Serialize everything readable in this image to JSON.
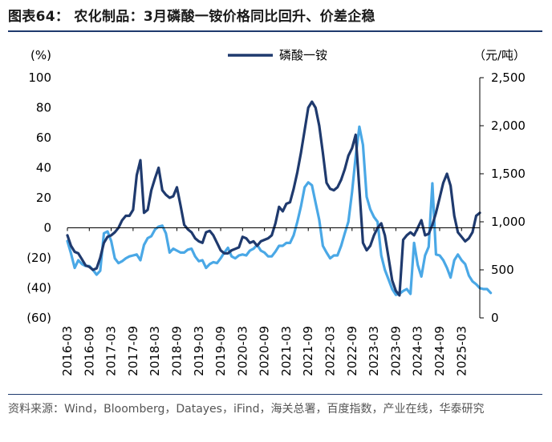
{
  "title": "图表64： 农化制品：3月磷酸一铵价格同比回升、价差企稳",
  "source": "资料来源：Wind，Bloomberg，Datayes，iFind，海关总署，百度指数，产业在线，华泰研究",
  "colors": {
    "series_dark": "#1f3a6e",
    "series_light": "#4aa8e6",
    "rule": "#1f3a6e"
  },
  "chart_data": {
    "type": "line",
    "title": "",
    "xlabel": "",
    "left_unit": "(%)",
    "right_unit": "（元/吨）",
    "ylim_left": [
      -60,
      100
    ],
    "ylim_right": [
      0,
      2500
    ],
    "left_ticks": [
      "100",
      "80",
      "60",
      "40",
      "20",
      "0",
      "(20)",
      "(40)",
      "(60)"
    ],
    "right_ticks": [
      "2,500",
      "2,000",
      "1,500",
      "1,000",
      "500",
      "0"
    ],
    "x_tick_labels": [
      "2016-03",
      "2016-09",
      "2017-03",
      "2017-09",
      "2018-03",
      "2018-09",
      "2019-03",
      "2019-09",
      "2020-03",
      "2020-09",
      "2021-03",
      "2021-09",
      "2022-03",
      "2022-09",
      "2023-03",
      "2023-09",
      "2024-03",
      "2024-09",
      "2025-03"
    ],
    "legend_position": "top-center",
    "series": [
      {
        "name": "磷酸一铵",
        "axis": "left",
        "color": "#1f3a6e",
        "values": [
          -5,
          -12,
          -16,
          -17,
          -21,
          -25,
          -26,
          -28,
          -27,
          -20,
          -10,
          -6,
          -5,
          -3,
          0,
          5,
          8,
          8,
          12,
          35,
          45,
          10,
          12,
          25,
          33,
          40,
          25,
          22,
          20,
          21,
          27,
          15,
          2,
          -1,
          -3,
          -7,
          -9,
          -10,
          -3,
          -2,
          -5,
          -10,
          -15,
          -17,
          -17,
          -15,
          -14,
          -13,
          -6,
          -7,
          -10,
          -9,
          -12,
          -9,
          -8,
          -7,
          -5,
          3,
          14,
          11,
          16,
          17,
          26,
          37,
          50,
          65,
          80,
          84,
          80,
          68,
          50,
          30,
          26,
          25,
          27,
          32,
          39,
          48,
          53,
          62,
          26,
          -10,
          -15,
          -12,
          -5,
          0,
          3,
          -5,
          -20,
          -35,
          -42,
          -45,
          -8,
          -5,
          -3,
          -5,
          0,
          5,
          -5,
          -4,
          2,
          10,
          20,
          30,
          36,
          28,
          8,
          -3,
          -6,
          -9,
          -7,
          -3,
          8,
          10
        ]
      },
      {
        "name": "",
        "axis": "right",
        "color": "#4aa8e6",
        "values": [
          800,
          670,
          520,
          600,
          560,
          540,
          540,
          500,
          450,
          490,
          880,
          900,
          800,
          620,
          570,
          590,
          620,
          640,
          650,
          660,
          600,
          760,
          830,
          850,
          920,
          950,
          960,
          880,
          680,
          720,
          700,
          680,
          680,
          710,
          720,
          640,
          590,
          600,
          520,
          560,
          580,
          570,
          620,
          680,
          730,
          640,
          620,
          650,
          660,
          650,
          700,
          720,
          760,
          700,
          680,
          640,
          640,
          690,
          750,
          750,
          780,
          780,
          860,
          1000,
          1160,
          1360,
          1410,
          1380,
          1200,
          1020,
          750,
          680,
          620,
          650,
          650,
          750,
          880,
          1000,
          1310,
          1680,
          1990,
          1800,
          1260,
          1130,
          1050,
          1000,
          650,
          500,
          400,
          300,
          240,
          250,
          280,
          300,
          250,
          780,
          550,
          430,
          650,
          740,
          1400,
          660,
          650,
          600,
          520,
          420,
          600,
          660,
          600,
          560,
          440,
          380,
          350,
          310,
          300,
          300,
          260
        ]
      }
    ]
  }
}
